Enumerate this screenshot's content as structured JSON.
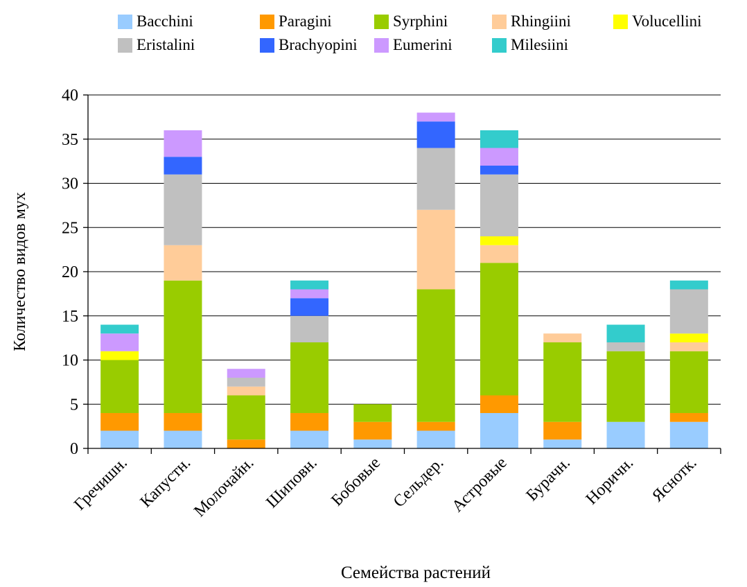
{
  "chart_data": {
    "type": "bar",
    "stacked": true,
    "title": "",
    "xlabel": "Семейства растений",
    "ylabel": "Количество видов мух",
    "ylim": [
      0,
      40
    ],
    "yticks": [
      0,
      5,
      10,
      15,
      20,
      25,
      30,
      35,
      40
    ],
    "grid": true,
    "legend_position": "top",
    "categories": [
      "Гречишн.",
      "Капустн.",
      "Молочайн.",
      "Шиповн.",
      "Бобовые",
      "Сельдер.",
      "Астровые",
      "Бурачн.",
      "Норичн.",
      "Яснотк."
    ],
    "series": [
      {
        "name": "Bacchini",
        "color": "#99ccff",
        "values": [
          2,
          2,
          0,
          2,
          1,
          2,
          4,
          1,
          3,
          3
        ]
      },
      {
        "name": "Paragini",
        "color": "#ff9900",
        "values": [
          2,
          2,
          1,
          2,
          2,
          1,
          2,
          2,
          0,
          1
        ]
      },
      {
        "name": "Syrphini",
        "color": "#99cc00",
        "values": [
          6,
          15,
          5,
          8,
          2,
          15,
          15,
          9,
          8,
          7
        ]
      },
      {
        "name": "Rhingiini",
        "color": "#ffcc99",
        "values": [
          0,
          4,
          1,
          0,
          0,
          9,
          2,
          1,
          0,
          1
        ]
      },
      {
        "name": "Volucellini",
        "color": "#ffff00",
        "values": [
          1,
          0,
          0,
          0,
          0,
          0,
          1,
          0,
          0,
          1
        ]
      },
      {
        "name": "Eristalini",
        "color": "#c0c0c0",
        "values": [
          0,
          8,
          1,
          3,
          0,
          7,
          7,
          0,
          1,
          5
        ]
      },
      {
        "name": "Brachyopini",
        "color": "#3366ff",
        "values": [
          0,
          2,
          0,
          2,
          0,
          3,
          1,
          0,
          0,
          0
        ]
      },
      {
        "name": "Eumerini",
        "color": "#cc99ff",
        "values": [
          2,
          3,
          1,
          1,
          0,
          1,
          2,
          0,
          0,
          0
        ]
      },
      {
        "name": "Milesiini",
        "color": "#33cccc",
        "values": [
          1,
          0,
          0,
          1,
          0,
          0,
          2,
          0,
          2,
          1
        ]
      }
    ]
  }
}
